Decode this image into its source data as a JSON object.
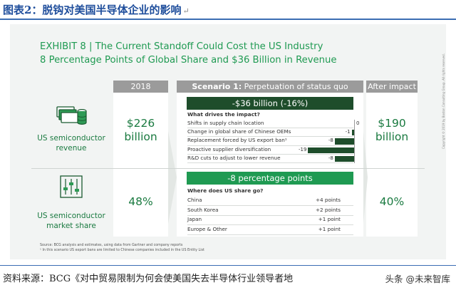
{
  "doc_title": "图表2：脱钩对美国半导体企业的影响",
  "title_line1": "EXHIBIT 8 | The Current Standoff Could Cost the US Industry",
  "title_line2": "8 Percentage Points of Global Share and $36 Billion in Revenue",
  "col_2018": "2018",
  "scenario_bold": "Scenario 1:",
  "scenario_rest": " Perpetuation of status quo",
  "col_after": "After impact",
  "revenue_label": [
    "US semiconductor",
    "revenue"
  ],
  "share_label": [
    "US semiconductor",
    "market share"
  ],
  "revenue_2018": [
    "$226",
    "billion"
  ],
  "revenue_after": [
    "$190",
    "billion"
  ],
  "share_2018": "48%",
  "share_after": "40%",
  "revenue_impact": "-$36 billion (-16%)",
  "drivers_heading": "What drives the impact?",
  "share_impact": "-8 percentage points",
  "share_heading": "Where does US share go?",
  "source_line1": "Source: BCG analysis and estimates, using data from Gartner and company reports",
  "source_line2": "¹ In this scenario US export bans are limited to Chinese companies included in the US Entity List",
  "copyright": "Copyright © 2019 by Boston Consulting Group. All rights reserved.",
  "footer_left": "资料来源：BCG《对中贸易限制为何会使美国失去半导体行业领导者地",
  "footer_right": "头条 @未来智库",
  "colors": {
    "green": "#1f9a52",
    "dark_green": "#1e4d2b",
    "gray_header": "#9b9b9b",
    "light_bg": "#f2f4f3"
  },
  "chart_data": [
    {
      "type": "bar",
      "orientation": "horizontal",
      "title": "What drives the impact?",
      "categories": [
        "Shifts in supply chain location",
        "Change in global share of Chinese OEMs",
        "Replacement forced by US export ban¹",
        "Proactive supplier diversification",
        "R&D cuts to adjust to lower revenue"
      ],
      "values": [
        0,
        -1,
        -8,
        -19,
        -8
      ],
      "value_labels": [
        "0",
        "-1",
        "-8",
        "-19",
        "-8"
      ],
      "total_label": "-$36 billion (-16%)"
    },
    {
      "type": "table",
      "title": "Where does US share go?",
      "rows": [
        {
          "region": "China",
          "value": "+4 points"
        },
        {
          "region": "South Korea",
          "value": "+2 points"
        },
        {
          "region": "Japan",
          "value": "+1 point"
        },
        {
          "region": "Europe & Other",
          "value": "+1 point"
        }
      ],
      "total_label": "-8 percentage points"
    }
  ]
}
